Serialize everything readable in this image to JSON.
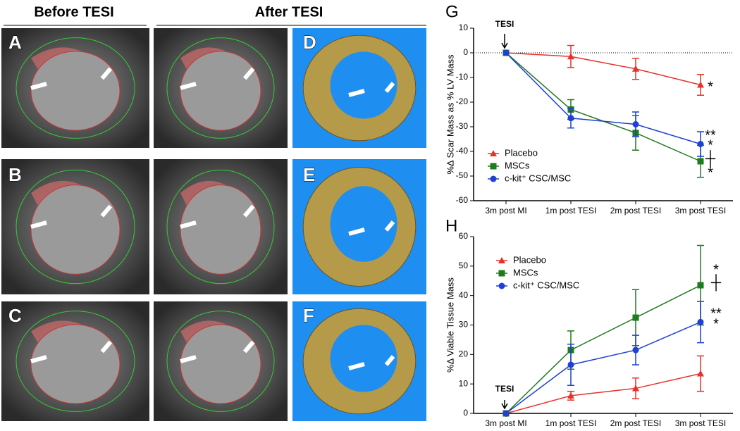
{
  "figure": {
    "headers": [
      "Before TESI",
      "After TESI"
    ],
    "panel_labels": [
      "A",
      "B",
      "C",
      "D",
      "E",
      "F"
    ]
  },
  "chart_data": [
    {
      "type": "line",
      "panel_label": "G",
      "y_label": "%Δ Scar Mass as % LV Mass",
      "annotation": "TESI",
      "categories": [
        "3m post MI",
        "1m post TESI",
        "2m post TESI",
        "3m post TESI"
      ],
      "ylim": [
        -60,
        10
      ],
      "yticks": [
        -60,
        -50,
        -40,
        -30,
        -20,
        -10,
        0,
        10
      ],
      "series": [
        {
          "name": "Placebo",
          "color": "#e8312a",
          "marker": "triangle",
          "values": [
            0,
            -1.5,
            -6.5,
            -13
          ],
          "errors": [
            null,
            4.5,
            4.3,
            4.2
          ]
        },
        {
          "name": "MSCs",
          "color": "#1e7b1e",
          "marker": "square",
          "values": [
            0,
            -23,
            -32.5,
            -44
          ],
          "errors": [
            null,
            4,
            7,
            6.5
          ]
        },
        {
          "name": "c-kit⁺ CSC/MSC",
          "color": "#1f3fd6",
          "marker": "circle",
          "values": [
            0,
            -26.5,
            -29,
            -37
          ],
          "errors": [
            null,
            4,
            5,
            5
          ]
        }
      ],
      "significance": [
        "*",
        "**",
        "*",
        "┼",
        "*"
      ]
    },
    {
      "type": "line",
      "panel_label": "H",
      "y_label": "%Δ Viable Tissue Mass",
      "annotation": "TESI",
      "categories": [
        "3m post MI",
        "1m post TESI",
        "2m post TESI",
        "3m post TESI"
      ],
      "ylim": [
        0,
        60
      ],
      "yticks": [
        0,
        10,
        20,
        30,
        40,
        50,
        60
      ],
      "series": [
        {
          "name": "Placebo",
          "color": "#e8312a",
          "marker": "triangle",
          "values": [
            0,
            6,
            8.5,
            13.5
          ],
          "errors": [
            null,
            1.5,
            3.5,
            6
          ]
        },
        {
          "name": "MSCs",
          "color": "#1e7b1e",
          "marker": "square",
          "values": [
            0,
            21.5,
            32.5,
            43.5
          ],
          "errors": [
            null,
            6.5,
            9.5,
            13.5
          ]
        },
        {
          "name": "c-kit⁺ CSC/MSC",
          "color": "#1f3fd6",
          "marker": "circle",
          "values": [
            0,
            16.5,
            21.5,
            31
          ],
          "errors": [
            null,
            7,
            5,
            7
          ]
        }
      ],
      "significance": [
        "*",
        "┼",
        "**",
        "*"
      ]
    }
  ]
}
